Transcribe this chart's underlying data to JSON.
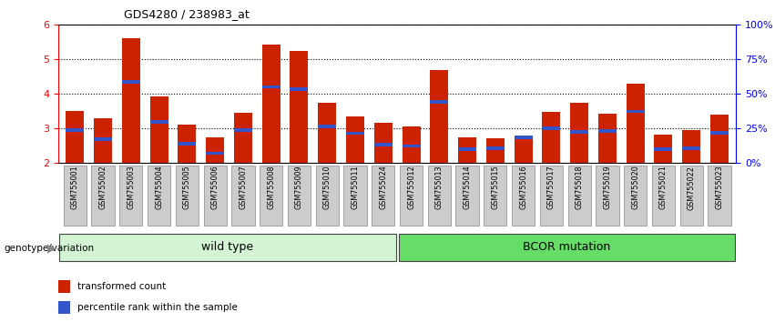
{
  "title": "GDS4280 / 238983_at",
  "samples": [
    "GSM755001",
    "GSM755002",
    "GSM755003",
    "GSM755004",
    "GSM755005",
    "GSM755006",
    "GSM755007",
    "GSM755008",
    "GSM755009",
    "GSM755010",
    "GSM755011",
    "GSM755024",
    "GSM755012",
    "GSM755013",
    "GSM755014",
    "GSM755015",
    "GSM755016",
    "GSM755017",
    "GSM755018",
    "GSM755019",
    "GSM755020",
    "GSM755021",
    "GSM755022",
    "GSM755023"
  ],
  "transformed_count": [
    3.5,
    3.28,
    5.6,
    3.9,
    3.1,
    2.73,
    3.45,
    5.42,
    5.22,
    3.72,
    3.34,
    3.15,
    3.05,
    4.68,
    2.72,
    2.71,
    2.7,
    3.46,
    3.72,
    3.42,
    4.28,
    2.82,
    2.95,
    3.38
  ],
  "percentile_bottom": [
    2.88,
    2.63,
    4.28,
    3.12,
    2.5,
    2.22,
    2.88,
    4.14,
    4.08,
    3.0,
    2.8,
    2.48,
    2.43,
    3.7,
    2.33,
    2.36,
    2.68,
    2.95,
    2.83,
    2.86,
    3.43,
    2.33,
    2.36,
    2.81
  ],
  "percentile_height": [
    0.1,
    0.1,
    0.1,
    0.1,
    0.1,
    0.1,
    0.1,
    0.1,
    0.1,
    0.1,
    0.1,
    0.1,
    0.1,
    0.1,
    0.1,
    0.1,
    0.1,
    0.1,
    0.1,
    0.1,
    0.1,
    0.1,
    0.1,
    0.1
  ],
  "group_labels": [
    "wild type",
    "BCOR mutation"
  ],
  "group_sizes": [
    12,
    12
  ],
  "group_colors": [
    "#d4f5d4",
    "#66dd66"
  ],
  "bar_color": "#cc2200",
  "blue_color": "#3355cc",
  "ylim_left": [
    2,
    6
  ],
  "ylim_right": [
    0,
    100
  ],
  "yticks_left": [
    2,
    3,
    4,
    5,
    6
  ],
  "yticks_right": [
    0,
    25,
    50,
    75,
    100
  ],
  "yticklabels_right": [
    "0%",
    "25%",
    "50%",
    "75%",
    "100%"
  ],
  "background_color": "#ffffff",
  "bar_width": 0.65,
  "xticklabel_bg": "#cccccc"
}
